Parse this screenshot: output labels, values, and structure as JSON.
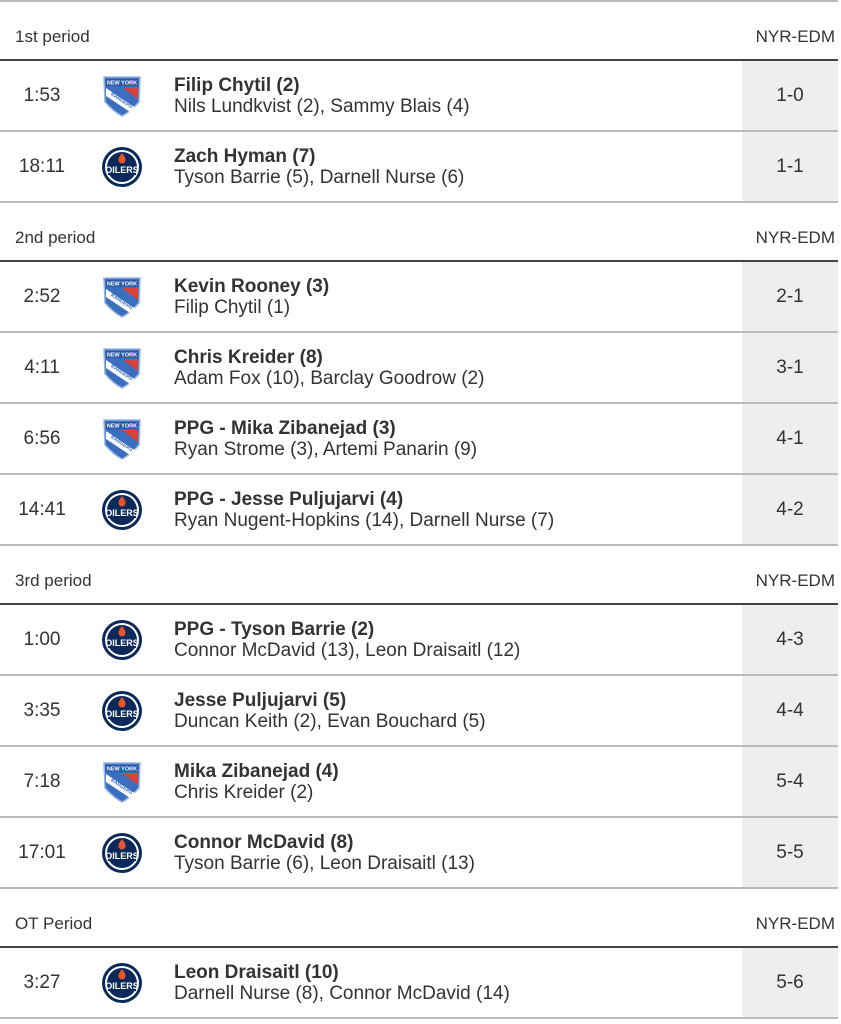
{
  "score_header": "NYR-EDM",
  "colors": {
    "score_bg": "#eeeeee",
    "rangers_blue": "#3a6fc0",
    "rangers_red": "#d9423a",
    "oilers_navy": "#0b2a5b",
    "oilers_orange": "#e5542b"
  },
  "periods": [
    {
      "label": "1st period",
      "goals": [
        {
          "time": "1:53",
          "team": "rangers-logo",
          "scorer": "Filip Chytil (2)",
          "assists": "Nils Lundkvist (2), Sammy Blais (4)",
          "score": "1-0"
        },
        {
          "time": "18:11",
          "team": "oilers-logo",
          "scorer": "Zach Hyman (7)",
          "assists": "Tyson Barrie (5), Darnell Nurse (6)",
          "score": "1-1"
        }
      ]
    },
    {
      "label": "2nd period",
      "goals": [
        {
          "time": "2:52",
          "team": "rangers-logo",
          "scorer": "Kevin Rooney (3)",
          "assists": "Filip Chytil (1)",
          "score": "2-1"
        },
        {
          "time": "4:11",
          "team": "rangers-logo",
          "scorer": "Chris Kreider (8)",
          "assists": "Adam Fox (10), Barclay Goodrow (2)",
          "score": "3-1"
        },
        {
          "time": "6:56",
          "team": "rangers-logo",
          "scorer": "PPG - Mika Zibanejad (3)",
          "assists": "Ryan Strome (3), Artemi Panarin (9)",
          "score": "4-1"
        },
        {
          "time": "14:41",
          "team": "oilers-logo",
          "scorer": "PPG - Jesse Puljujarvi (4)",
          "assists": "Ryan Nugent-Hopkins (14), Darnell Nurse (7)",
          "score": "4-2"
        }
      ]
    },
    {
      "label": "3rd period",
      "goals": [
        {
          "time": "1:00",
          "team": "oilers-logo",
          "scorer": "PPG - Tyson Barrie (2)",
          "assists": "Connor McDavid (13), Leon Draisaitl (12)",
          "score": "4-3"
        },
        {
          "time": "3:35",
          "team": "oilers-logo",
          "scorer": "Jesse Puljujarvi (5)",
          "assists": "Duncan Keith (2), Evan Bouchard (5)",
          "score": "4-4"
        },
        {
          "time": "7:18",
          "team": "rangers-logo",
          "scorer": "Mika Zibanejad (4)",
          "assists": "Chris Kreider (2)",
          "score": "5-4"
        },
        {
          "time": "17:01",
          "team": "oilers-logo",
          "scorer": "Connor McDavid (8)",
          "assists": "Tyson Barrie (6), Leon Draisaitl (13)",
          "score": "5-5"
        }
      ]
    },
    {
      "label": "OT Period",
      "goals": [
        {
          "time": "3:27",
          "team": "oilers-logo",
          "scorer": "Leon Draisaitl (10)",
          "assists": "Darnell Nurse (8), Connor McDavid (14)",
          "score": "5-6"
        }
      ]
    }
  ]
}
